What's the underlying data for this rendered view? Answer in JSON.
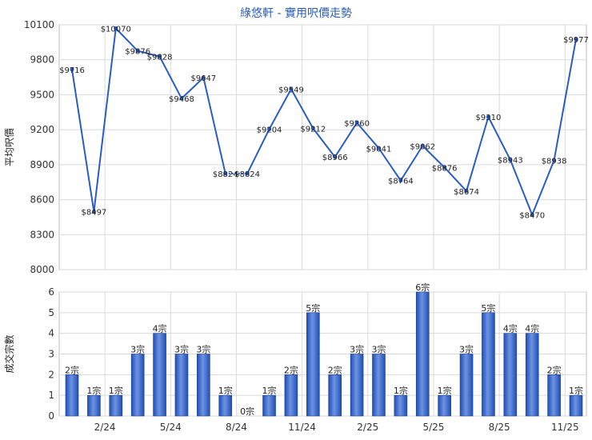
{
  "chart_data": [
    {
      "type": "line",
      "title": "綠悠軒 - 實用呎價走勢",
      "ylabel": "平均呎價",
      "ylim": [
        8000,
        10100
      ],
      "yticks": [
        8000,
        8300,
        8600,
        8900,
        9200,
        9500,
        9800,
        10100
      ],
      "grid": true,
      "color": "#2a5cc6",
      "points": [
        {
          "y": 9716,
          "label": "$9716"
        },
        {
          "y": 8497,
          "label": "$8497"
        },
        {
          "y": 10070,
          "label": "$10070"
        },
        {
          "y": 9876,
          "label": "$9876"
        },
        {
          "y": 9828,
          "label": "$9828"
        },
        {
          "y": 9468,
          "label": "$9468"
        },
        {
          "y": 9647,
          "label": "$9647"
        },
        {
          "y": 8824,
          "label": "$8824"
        },
        {
          "y": 8824,
          "label": "$8824"
        },
        {
          "y": 9204,
          "label": "$9204"
        },
        {
          "y": 9549,
          "label": "$9549"
        },
        {
          "y": 9212,
          "label": "$9212"
        },
        {
          "y": 8966,
          "label": "$8966"
        },
        {
          "y": 9260,
          "label": "$9260"
        },
        {
          "y": 9041,
          "label": "$9041"
        },
        {
          "y": 8764,
          "label": "$8764"
        },
        {
          "y": 9062,
          "label": "$9062"
        },
        {
          "y": 8876,
          "label": "$8876"
        },
        {
          "y": 8674,
          "label": "$8674"
        },
        {
          "y": 9310,
          "label": "$9310"
        },
        {
          "y": 8943,
          "label": "$8943"
        },
        {
          "y": 8470,
          "label": "$8470"
        },
        {
          "y": 8938,
          "label": "$8938"
        },
        {
          "y": 9977,
          "label": "$9977"
        }
      ],
      "dashed_segment_index": 7
    },
    {
      "type": "bar",
      "ylabel": "成交宗數",
      "ylim": [
        0,
        6
      ],
      "yticks": [
        0,
        1,
        2,
        3,
        4,
        5,
        6
      ],
      "grid": true,
      "color": "#2f5fc9",
      "x_tick_labels": [
        "2/24",
        "5/24",
        "8/24",
        "11/24",
        "2/25",
        "5/25",
        "8/25",
        "11/25"
      ],
      "x_tick_positions": [
        2.5,
        5.5,
        8.5,
        11.5,
        14.5,
        17.5,
        20.5,
        23.5
      ],
      "values": [
        2,
        1,
        1,
        3,
        4,
        3,
        3,
        1,
        0,
        1,
        2,
        5,
        2,
        3,
        3,
        1,
        6,
        1,
        3,
        5,
        4,
        4,
        2,
        1
      ],
      "value_labels": [
        "2宗",
        "1宗",
        "1宗",
        "3宗",
        "4宗",
        "3宗",
        "3宗",
        "1宗",
        "0宗",
        "1宗",
        "2宗",
        "5宗",
        "2宗",
        "3宗",
        "3宗",
        "1宗",
        "6宗",
        "1宗",
        "3宗",
        "5宗",
        "4宗",
        "4宗",
        "2宗",
        "1宗"
      ]
    }
  ]
}
